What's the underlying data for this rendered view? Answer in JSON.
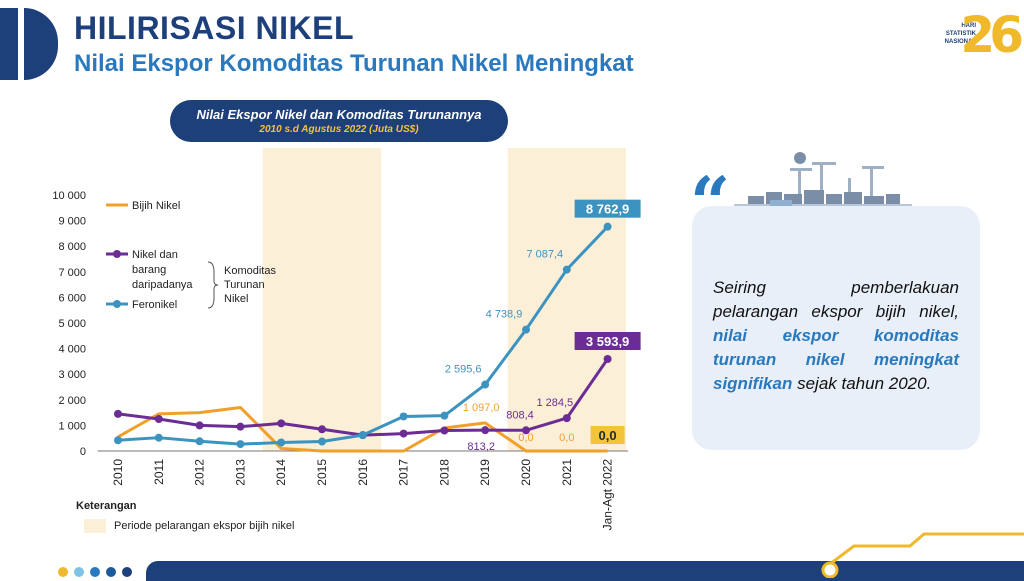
{
  "header": {
    "title": "HILIRISASI NIKEL",
    "subtitle": "Nilai Ekspor Komoditas Turunan Nikel Meningkat"
  },
  "logo": {
    "text_line1": "HARI",
    "text_line2": "STATISTIK",
    "text_line3": "NASIONAL",
    "number": "26"
  },
  "chart_data": {
    "type": "line",
    "title": "Nilai Ekspor Nikel dan Komoditas Turunannya",
    "subtitle": "2010 s.d Agustus 2022 (Juta US$)",
    "categories": [
      "2010",
      "2011",
      "2012",
      "2013",
      "2014",
      "2015",
      "2016",
      "2017",
      "2018",
      "2019",
      "2020",
      "2021",
      "Jan-Agt 2022"
    ],
    "y_ticks": [
      "0",
      "1 000",
      "2 000",
      "3 000",
      "4 000",
      "5 000",
      "6 000",
      "7 000",
      "8 000",
      "9 000",
      "10 000"
    ],
    "ylim": [
      0,
      10000
    ],
    "series": [
      {
        "name": "Bijih Nikel",
        "color": "#f0a02a",
        "values": [
          550,
          1450,
          1500,
          1700,
          100,
          0,
          0,
          0,
          900,
          1097.0,
          0.0,
          0.0,
          0.0
        ],
        "labels": [
          null,
          null,
          null,
          null,
          null,
          null,
          null,
          null,
          null,
          "1 097,0",
          "0,0",
          "0,0",
          "0,0"
        ]
      },
      {
        "name": "Nikel dan barang daripadanya",
        "color": "#6b2d93",
        "values": [
          1450,
          1250,
          1000,
          950,
          1080,
          850,
          620,
          680,
          800,
          813.2,
          808.4,
          1284.5,
          3593.9
        ],
        "labels": [
          null,
          null,
          null,
          null,
          null,
          null,
          null,
          null,
          null,
          "813,2",
          "808,4",
          "1 284,5",
          "3 593,9"
        ]
      },
      {
        "name": "Feronikel",
        "color": "#3d93c0",
        "values": [
          420,
          520,
          380,
          270,
          330,
          370,
          620,
          1350,
          1380,
          2595.6,
          4738.9,
          7087.4,
          8762.9
        ],
        "labels": [
          null,
          null,
          null,
          null,
          null,
          null,
          null,
          null,
          null,
          "2 595,6",
          "4 738,9",
          "7 087,4",
          "8 762,9"
        ]
      }
    ],
    "legend": {
      "items": [
        "Bijih Nikel",
        "Nikel dan barang daripadanya",
        "Feronikel"
      ],
      "group_label": "Komoditas Turunan Nikel"
    },
    "shaded_periods": [
      [
        "2014",
        "2016"
      ],
      [
        "2020",
        "Jan-Agt 2022"
      ]
    ]
  },
  "note": {
    "title": "Keterangan",
    "label": "Periode pelarangan ekspor bijih nikel"
  },
  "quote": {
    "part1": "Seiring pemberlakuan pelarangan ekspor bijih nikel, ",
    "highlight": "nilai ekspor komoditas turunan nikel meningkat signifikan",
    "part2": " sejak tahun 2020."
  },
  "colors": {
    "navy": "#1d3f7a",
    "accent_blue": "#2a79be",
    "yellow": "#f0b92c",
    "shade": "#fcefd8"
  }
}
